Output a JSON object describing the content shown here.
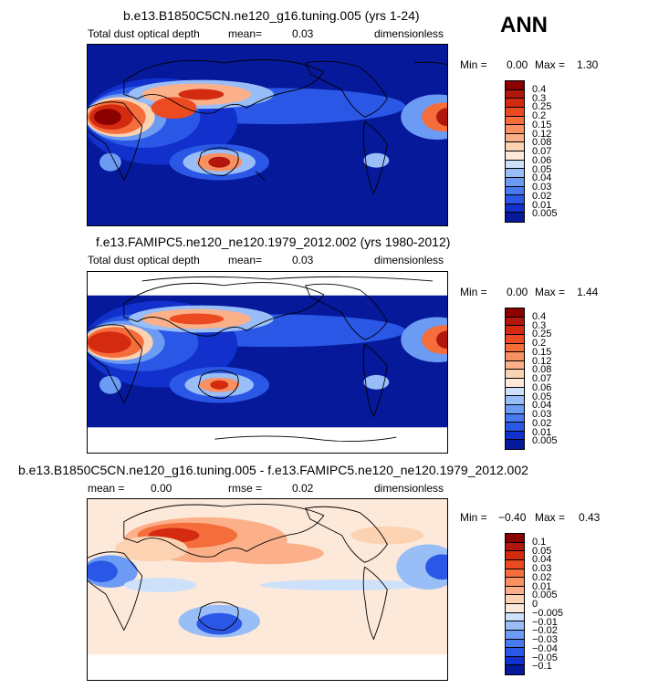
{
  "season": "ANN",
  "panels": [
    {
      "title": "b.e13.B1850C5CN.ne120_g16.tuning.005 (yrs 1-24)",
      "variable": "Total dust optical depth",
      "mean_label": "mean=",
      "mean_value": "0.03",
      "units": "dimensionless",
      "min_label": "Min =",
      "min_value": "0.00",
      "max_label": "Max =",
      "max_value": "1.30",
      "colorbar": {
        "ticks": [
          "0.4",
          "0.3",
          "0.25",
          "0.2",
          "0.15",
          "0.12",
          "0.08",
          "0.07",
          "0.06",
          "0.05",
          "0.04",
          "0.03",
          "0.02",
          "0.01",
          "0.005"
        ],
        "colors": [
          "#8b0000",
          "#b2170d",
          "#d42a10",
          "#ec4a21",
          "#f66d3c",
          "#f99062",
          "#fbb089",
          "#fbd3b3",
          "#fde9da",
          "#cde1fa",
          "#98bdf7",
          "#6c9bf4",
          "#4979f0",
          "#2a57e6",
          "#1130cc",
          "#05199a"
        ]
      }
    },
    {
      "title": "f.e13.FAMIPC5.ne120_ne120.1979_2012.002 (yrs 1980-2012)",
      "variable": "Total dust optical depth",
      "mean_label": "mean=",
      "mean_value": "0.03",
      "units": "dimensionless",
      "min_label": "Min =",
      "min_value": "0.00",
      "max_label": "Max =",
      "max_value": "1.44",
      "colorbar": {
        "ticks": [
          "0.4",
          "0.3",
          "0.25",
          "0.2",
          "0.15",
          "0.12",
          "0.08",
          "0.07",
          "0.06",
          "0.05",
          "0.04",
          "0.03",
          "0.02",
          "0.01",
          "0.005"
        ],
        "colors": [
          "#8b0000",
          "#b2170d",
          "#d42a10",
          "#ec4a21",
          "#f66d3c",
          "#f99062",
          "#fbb089",
          "#fbd3b3",
          "#fde9da",
          "#cde1fa",
          "#98bdf7",
          "#6c9bf4",
          "#4979f0",
          "#2a57e6",
          "#1130cc",
          "#05199a"
        ]
      }
    },
    {
      "title": "b.e13.B1850C5CN.ne120_g16.tuning.005 - f.e13.FAMIPC5.ne120_ne120.1979_2012.002",
      "mean_label": "mean =",
      "mean_value": "0.00",
      "rmse_label": "rmse =",
      "rmse_value": "0.02",
      "units": "dimensionless",
      "min_label": "Min =",
      "min_value": "−0.40",
      "max_label": "Max =",
      "max_value": "0.43",
      "colorbar": {
        "ticks": [
          "0.1",
          "0.05",
          "0.04",
          "0.03",
          "0.02",
          "0.01",
          "0.005",
          "0",
          "−0.005",
          "−0.01",
          "−0.02",
          "−0.03",
          "−0.04",
          "−0.05",
          "−0.1"
        ],
        "colors": [
          "#8b0000",
          "#b2170d",
          "#d42a10",
          "#ec4a21",
          "#f66d3c",
          "#f99062",
          "#fbb089",
          "#fbd3b3",
          "#fde9da",
          "#cde1fa",
          "#98bdf7",
          "#6c9bf4",
          "#4979f0",
          "#2a57e6",
          "#1130cc",
          "#05199a"
        ]
      }
    }
  ]
}
